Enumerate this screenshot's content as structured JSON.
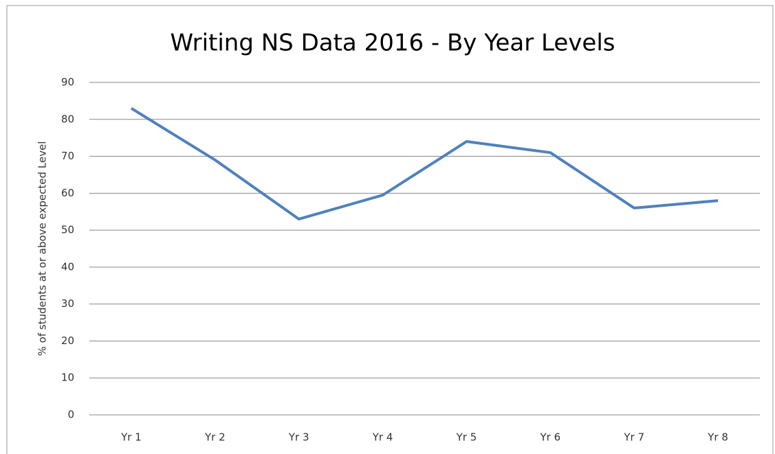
{
  "chart_data": {
    "type": "line",
    "title": "Writing NS Data 2016 - By Year Levels",
    "y_label": "% of students at or above expected Level",
    "categories": [
      "Yr 1",
      "Yr 2",
      "Yr 3",
      "Yr 4",
      "Yr 5",
      "Yr 6",
      "Yr 7",
      "Yr 8"
    ],
    "series": [
      {
        "name": "Writing",
        "color": "#4f81bd",
        "values": [
          83,
          69,
          53,
          59.5,
          74,
          71,
          56,
          58
        ]
      }
    ],
    "ylim": [
      0,
      90
    ],
    "yticks": [
      0,
      10,
      20,
      30,
      40,
      50,
      60,
      70,
      80,
      90
    ],
    "grid": true,
    "legend": false
  }
}
